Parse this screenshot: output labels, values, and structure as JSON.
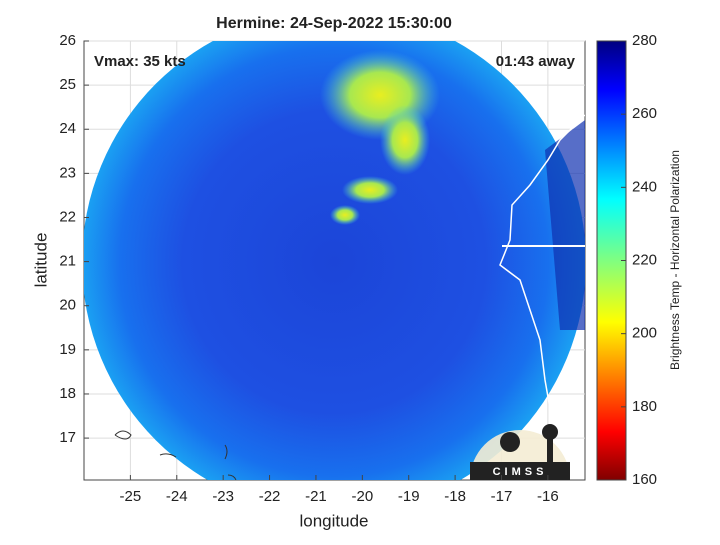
{
  "chart_data": {
    "type": "image",
    "title": "Hermine: 24-Sep-2022 15:30:00",
    "x_label": "longitude",
    "y_label": "latitude",
    "xlim": [
      -26.0,
      -15.2
    ],
    "ylim": [
      16.05,
      26
    ],
    "xticks": [
      -25,
      -24,
      -23,
      -22,
      -21,
      -20,
      -19,
      -18,
      -17,
      -16
    ],
    "yticks": [
      17,
      18,
      19,
      20,
      21,
      22,
      23,
      24,
      25,
      26
    ],
    "grid": true,
    "annotations": [
      "Vmax: 35 kts",
      "01:43 away"
    ],
    "logo": "CIMSS",
    "colorbar": {
      "label": "Brightness Temp - Horizontal Polarization",
      "lim": [
        160,
        280
      ],
      "ticks": [
        160,
        180,
        200,
        220,
        240,
        260,
        280
      ]
    }
  }
}
